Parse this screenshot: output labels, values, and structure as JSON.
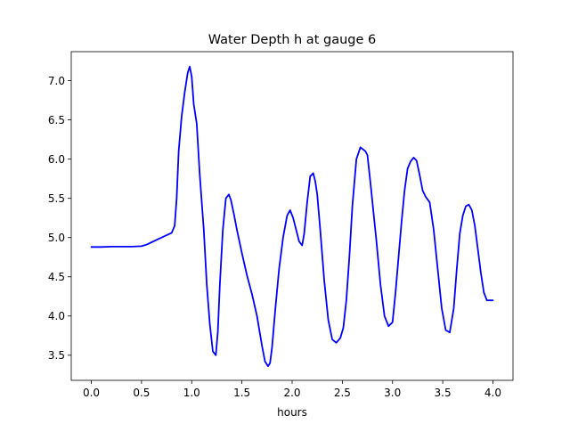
{
  "chart_data": {
    "type": "line",
    "title": "Water Depth h at gauge 6",
    "xlabel": "hours",
    "ylabel": "",
    "xlim": [
      -0.2,
      4.2
    ],
    "ylim": [
      3.18,
      7.37
    ],
    "xticks": [
      0.0,
      0.5,
      1.0,
      1.5,
      2.0,
      2.5,
      3.0,
      3.5,
      4.0
    ],
    "xtick_labels": [
      "0.0",
      "0.5",
      "1.0",
      "1.5",
      "2.0",
      "2.5",
      "3.0",
      "3.5",
      "4.0"
    ],
    "yticks": [
      3.5,
      4.0,
      4.5,
      5.0,
      5.5,
      6.0,
      6.5,
      7.0
    ],
    "ytick_labels": [
      "3.5",
      "4.0",
      "4.5",
      "5.0",
      "5.5",
      "6.0",
      "6.5",
      "7.0"
    ],
    "grid": false,
    "series": [
      {
        "color": "#0000ff",
        "x": [
          0.0,
          0.1,
          0.2,
          0.3,
          0.4,
          0.5,
          0.55,
          0.6,
          0.65,
          0.7,
          0.75,
          0.8,
          0.83,
          0.85,
          0.87,
          0.9,
          0.93,
          0.96,
          0.98,
          1.0,
          1.02,
          1.05,
          1.08,
          1.12,
          1.15,
          1.18,
          1.21,
          1.24,
          1.26,
          1.28,
          1.31,
          1.34,
          1.37,
          1.39,
          1.42,
          1.45,
          1.5,
          1.55,
          1.6,
          1.65,
          1.7,
          1.73,
          1.76,
          1.78,
          1.8,
          1.83,
          1.87,
          1.91,
          1.95,
          1.98,
          2.01,
          2.04,
          2.07,
          2.1,
          2.12,
          2.15,
          2.18,
          2.21,
          2.23,
          2.25,
          2.28,
          2.32,
          2.36,
          2.4,
          2.44,
          2.48,
          2.51,
          2.54,
          2.57,
          2.6,
          2.64,
          2.68,
          2.71,
          2.73,
          2.75,
          2.78,
          2.8,
          2.84,
          2.88,
          2.92,
          2.96,
          3.0,
          3.03,
          3.06,
          3.09,
          3.12,
          3.15,
          3.18,
          3.21,
          3.24,
          3.27,
          3.3,
          3.33,
          3.37,
          3.41,
          3.45,
          3.49,
          3.53,
          3.57,
          3.61,
          3.64,
          3.67,
          3.7,
          3.73,
          3.76,
          3.79,
          3.82,
          3.85,
          3.88,
          3.91,
          3.94,
          3.97,
          4.0
        ],
        "y": [
          4.88,
          4.88,
          4.885,
          4.885,
          4.885,
          4.89,
          4.91,
          4.94,
          4.97,
          5.0,
          5.03,
          5.06,
          5.15,
          5.5,
          6.1,
          6.55,
          6.85,
          7.1,
          7.18,
          7.05,
          6.7,
          6.45,
          5.8,
          5.1,
          4.4,
          3.9,
          3.55,
          3.5,
          3.8,
          4.4,
          5.1,
          5.5,
          5.55,
          5.48,
          5.3,
          5.1,
          4.8,
          4.52,
          4.28,
          4.0,
          3.62,
          3.42,
          3.36,
          3.4,
          3.6,
          4.05,
          4.6,
          5.0,
          5.28,
          5.35,
          5.25,
          5.1,
          4.95,
          4.9,
          5.05,
          5.45,
          5.78,
          5.82,
          5.72,
          5.55,
          5.1,
          4.45,
          3.95,
          3.7,
          3.66,
          3.72,
          3.85,
          4.2,
          4.75,
          5.4,
          6.0,
          6.15,
          6.12,
          6.1,
          6.05,
          5.7,
          5.45,
          4.95,
          4.4,
          4.0,
          3.87,
          3.92,
          4.3,
          4.75,
          5.2,
          5.6,
          5.88,
          5.97,
          6.02,
          5.98,
          5.8,
          5.6,
          5.52,
          5.45,
          5.1,
          4.6,
          4.1,
          3.82,
          3.79,
          4.1,
          4.6,
          5.05,
          5.28,
          5.4,
          5.42,
          5.35,
          5.15,
          4.85,
          4.55,
          4.3,
          4.2,
          4.2,
          4.2
        ]
      }
    ]
  }
}
